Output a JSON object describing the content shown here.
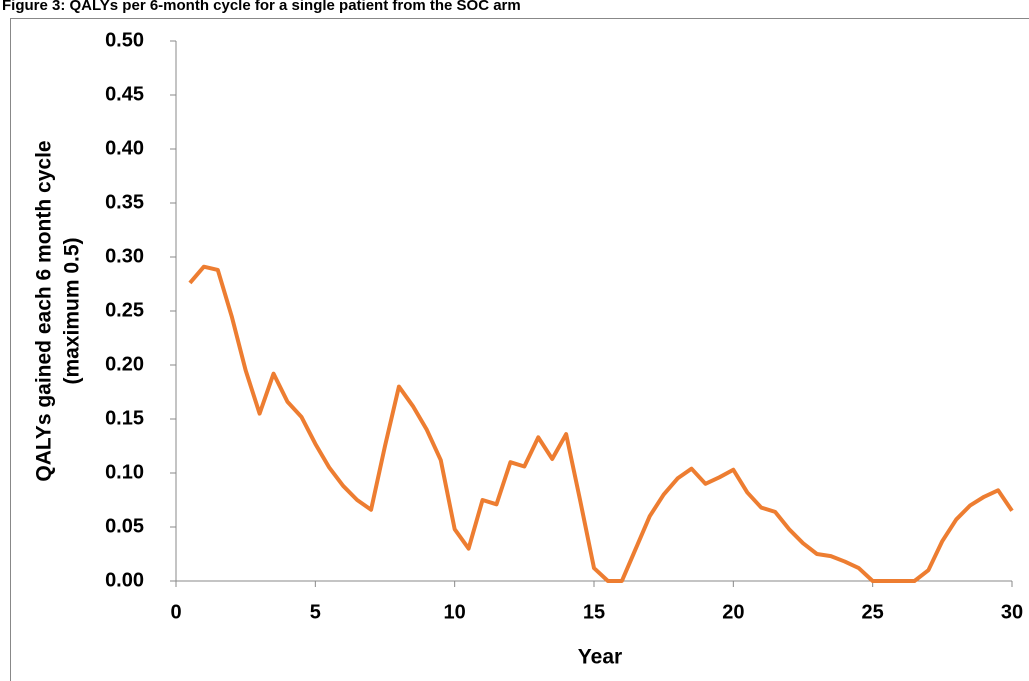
{
  "chart_data": {
    "type": "line",
    "title": "Figure 3: QALYs per 6-month cycle for a single patient from the SOC arm",
    "xlabel": "Year",
    "ylabel": [
      "QALYs gained each 6 month cycle",
      "(maximum 0.5)"
    ],
    "x": [
      0.5,
      1,
      1.5,
      2,
      2.5,
      3,
      3.5,
      4,
      4.5,
      5,
      5.5,
      6,
      6.5,
      7,
      7.5,
      8,
      8.5,
      9,
      9.5,
      10,
      10.5,
      11,
      11.5,
      12,
      12.5,
      13,
      13.5,
      14,
      14.5,
      15,
      15.5,
      16,
      16.5,
      17,
      17.5,
      18,
      18.5,
      19,
      19.5,
      20,
      20.5,
      21,
      21.5,
      22,
      22.5,
      23,
      23.5,
      24,
      24.5,
      25,
      25.5,
      26,
      26.5,
      27,
      27.5,
      28,
      28.5,
      29,
      29.5,
      30
    ],
    "series": [
      {
        "color": "#ed7d31",
        "values": [
          0.276,
          0.291,
          0.288,
          0.245,
          0.195,
          0.155,
          0.192,
          0.166,
          0.152,
          0.127,
          0.105,
          0.088,
          0.075,
          0.066,
          0.125,
          0.18,
          0.162,
          0.14,
          0.112,
          0.048,
          0.03,
          0.075,
          0.071,
          0.11,
          0.106,
          0.133,
          0.113,
          0.136,
          0.075,
          0.012,
          0,
          0,
          0.03,
          0.06,
          0.08,
          0.095,
          0.104,
          0.09,
          0.096,
          0.103,
          0.082,
          0.068,
          0.064,
          0.048,
          0.035,
          0.025,
          0.023,
          0.018,
          0.012,
          0,
          0,
          0,
          0,
          0.01,
          0.037,
          0.057,
          0.07,
          0.078,
          0.084,
          0.065
        ]
      }
    ],
    "xlim": [
      0,
      30
    ],
    "xticks": [
      0,
      5,
      10,
      15,
      20,
      25,
      30
    ],
    "ylim": [
      0,
      0.5
    ],
    "yticks": [
      {
        "value": 0,
        "label": "0.00"
      },
      {
        "value": 0.05,
        "label": "0.05"
      },
      {
        "value": 0.1,
        "label": "0.10"
      },
      {
        "value": 0.15,
        "label": "0.15"
      },
      {
        "value": 0.2,
        "label": "0.20"
      },
      {
        "value": 0.25,
        "label": "0.25"
      },
      {
        "value": 0.3,
        "label": "0.30"
      },
      {
        "value": 0.35,
        "label": "0.35"
      },
      {
        "value": 0.4,
        "label": "0.40"
      },
      {
        "value": 0.45,
        "label": "0.45"
      },
      {
        "value": 0.5,
        "label": "0.50"
      }
    ],
    "grid": false
  }
}
